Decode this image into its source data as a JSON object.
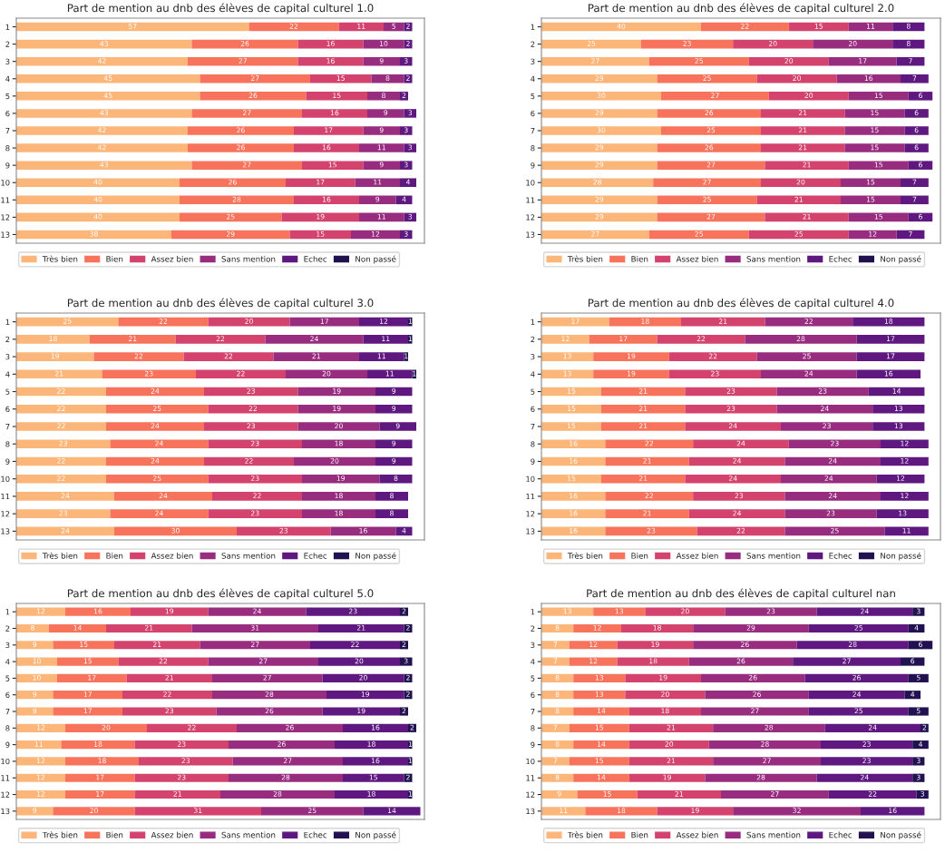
{
  "chart_data": [
    {
      "type": "bar",
      "orientation": "horizontal",
      "stacked": true,
      "data_labels": true,
      "tick_labels": "y",
      "legend": "bottom",
      "xlim": [
        0,
        100
      ],
      "title": "Part de mention au dnb des élèves de capital culturel 1.0",
      "categories": [
        "1",
        "2",
        "3",
        "4",
        "5",
        "6",
        "7",
        "8",
        "9",
        "10",
        "11",
        "12",
        "13"
      ],
      "series": [
        {
          "name": "Très bien",
          "color": "#fdb67a",
          "values": [
            57,
            43,
            42,
            45,
            45,
            43,
            42,
            42,
            43,
            40,
            40,
            40,
            38
          ]
        },
        {
          "name": "Bien",
          "color": "#f7735c",
          "values": [
            22,
            26,
            27,
            27,
            26,
            27,
            26,
            26,
            27,
            26,
            28,
            25,
            29
          ]
        },
        {
          "name": "Assez bien",
          "color": "#d3436e",
          "values": [
            11,
            16,
            16,
            15,
            15,
            16,
            17,
            16,
            15,
            17,
            16,
            19,
            15
          ]
        },
        {
          "name": "Sans mention",
          "color": "#982d80",
          "values": [
            5,
            10,
            9,
            8,
            8,
            9,
            9,
            11,
            9,
            11,
            9,
            11,
            12
          ]
        },
        {
          "name": "Echec",
          "color": "#5f187f",
          "values": [
            2,
            2,
            3,
            2,
            2,
            3,
            3,
            3,
            3,
            4,
            4,
            3,
            3
          ]
        },
        {
          "name": "Non passé",
          "color": "#221150",
          "values": [
            0,
            0,
            0,
            0,
            0,
            0,
            0,
            0,
            0,
            0,
            0,
            0,
            0
          ],
          "value_labels": [
            null,
            null,
            null,
            null,
            null,
            null,
            null,
            null,
            null,
            null,
            null,
            null,
            null
          ]
        }
      ]
    },
    {
      "type": "bar",
      "orientation": "horizontal",
      "stacked": true,
      "data_labels": true,
      "tick_labels": "y",
      "legend": "bottom",
      "xlim": [
        0,
        100
      ],
      "title": "Part de mention au dnb des élèves de capital culturel 2.0",
      "categories": [
        "1",
        "2",
        "3",
        "4",
        "5",
        "6",
        "7",
        "8",
        "9",
        "10",
        "11",
        "12",
        "13"
      ],
      "series": [
        {
          "name": "Très bien",
          "color": "#fdb67a",
          "values": [
            40,
            25,
            27,
            29,
            30,
            29,
            30,
            29,
            29,
            28,
            29,
            29,
            27
          ]
        },
        {
          "name": "Bien",
          "color": "#f7735c",
          "values": [
            22,
            23,
            25,
            25,
            27,
            26,
            25,
            26,
            27,
            27,
            25,
            27,
            25
          ]
        },
        {
          "name": "Assez bien",
          "color": "#d3436e",
          "values": [
            15,
            20,
            20,
            20,
            20,
            21,
            21,
            21,
            21,
            20,
            21,
            21,
            25
          ]
        },
        {
          "name": "Sans mention",
          "color": "#982d80",
          "values": [
            11,
            20,
            17,
            16,
            15,
            15,
            15,
            15,
            15,
            15,
            15,
            15,
            12
          ]
        },
        {
          "name": "Echec",
          "color": "#5f187f",
          "values": [
            8,
            8,
            7,
            7,
            6,
            6,
            6,
            6,
            6,
            7,
            7,
            6,
            7
          ]
        },
        {
          "name": "Non passé",
          "color": "#221150",
          "values": [
            null,
            null,
            null,
            null,
            null,
            null,
            null,
            null,
            null,
            null,
            null,
            null,
            null
          ]
        }
      ]
    },
    {
      "type": "bar",
      "orientation": "horizontal",
      "stacked": true,
      "data_labels": true,
      "tick_labels": "y",
      "legend": "bottom",
      "xlim": [
        0,
        100
      ],
      "title": "Part de mention au dnb des élèves de capital culturel 3.0",
      "categories": [
        "1",
        "2",
        "3",
        "4",
        "5",
        "6",
        "7",
        "8",
        "9",
        "10",
        "11",
        "12",
        "13"
      ],
      "series": [
        {
          "name": "Très bien",
          "color": "#fdb67a",
          "values": [
            25,
            18,
            19,
            21,
            22,
            22,
            22,
            23,
            22,
            22,
            24,
            23,
            24
          ]
        },
        {
          "name": "Bien",
          "color": "#f7735c",
          "values": [
            22,
            21,
            22,
            23,
            24,
            25,
            24,
            24,
            24,
            25,
            24,
            24,
            30
          ]
        },
        {
          "name": "Assez bien",
          "color": "#d3436e",
          "values": [
            20,
            22,
            22,
            22,
            23,
            22,
            23,
            23,
            22,
            23,
            22,
            23,
            23
          ]
        },
        {
          "name": "Sans mention",
          "color": "#982d80",
          "values": [
            17,
            24,
            21,
            20,
            19,
            19,
            20,
            18,
            20,
            19,
            18,
            18,
            16
          ]
        },
        {
          "name": "Echec",
          "color": "#5f187f",
          "values": [
            12,
            11,
            11,
            11,
            9,
            9,
            9,
            9,
            9,
            8,
            8,
            8,
            4
          ]
        },
        {
          "name": "Non passé",
          "color": "#221150",
          "values": [
            1,
            1,
            1,
            1,
            0,
            0,
            0,
            0,
            0,
            0,
            0,
            0,
            0
          ],
          "value_labels": [
            "1",
            "1",
            "1",
            "1",
            null,
            null,
            null,
            null,
            null,
            null,
            null,
            null,
            null
          ]
        }
      ]
    },
    {
      "type": "bar",
      "orientation": "horizontal",
      "stacked": true,
      "data_labels": true,
      "tick_labels": "y",
      "legend": "bottom",
      "xlim": [
        0,
        100
      ],
      "title": "Part de mention au dnb des élèves de capital culturel 4.0",
      "categories": [
        "1",
        "2",
        "3",
        "4",
        "5",
        "6",
        "7",
        "8",
        "9",
        "10",
        "11",
        "12",
        "13"
      ],
      "series": [
        {
          "name": "Très bien",
          "color": "#fdb67a",
          "values": [
            17,
            12,
            13,
            13,
            15,
            15,
            15,
            16,
            16,
            15,
            16,
            16,
            16
          ]
        },
        {
          "name": "Bien",
          "color": "#f7735c",
          "values": [
            18,
            17,
            19,
            19,
            21,
            21,
            21,
            22,
            21,
            21,
            22,
            21,
            23
          ]
        },
        {
          "name": "Assez bien",
          "color": "#d3436e",
          "values": [
            21,
            22,
            22,
            23,
            23,
            23,
            24,
            24,
            24,
            24,
            23,
            24,
            22
          ]
        },
        {
          "name": "Sans mention",
          "color": "#982d80",
          "values": [
            22,
            28,
            25,
            24,
            23,
            24,
            23,
            23,
            24,
            24,
            24,
            23,
            25
          ]
        },
        {
          "name": "Echec",
          "color": "#5f187f",
          "values": [
            18,
            17,
            17,
            16,
            14,
            13,
            13,
            12,
            12,
            12,
            12,
            13,
            11
          ]
        },
        {
          "name": "Non passé",
          "color": "#221150",
          "values": [
            null,
            null,
            null,
            null,
            null,
            null,
            null,
            null,
            null,
            null,
            null,
            null,
            null
          ]
        }
      ]
    },
    {
      "type": "bar",
      "orientation": "horizontal",
      "stacked": true,
      "data_labels": true,
      "tick_labels": "y",
      "legend": "bottom",
      "xlim": [
        0,
        100
      ],
      "title": "Part de mention au dnb des élèves de capital culturel 5.0",
      "categories": [
        "1",
        "2",
        "3",
        "4",
        "5",
        "6",
        "7",
        "8",
        "9",
        "10",
        "11",
        "12",
        "13"
      ],
      "series": [
        {
          "name": "Très bien",
          "color": "#fdb67a",
          "values": [
            12,
            8,
            9,
            10,
            10,
            9,
            9,
            12,
            11,
            12,
            12,
            12,
            9
          ]
        },
        {
          "name": "Bien",
          "color": "#f7735c",
          "values": [
            16,
            14,
            15,
            15,
            17,
            17,
            17,
            20,
            18,
            18,
            17,
            17,
            20
          ]
        },
        {
          "name": "Assez bien",
          "color": "#d3436e",
          "values": [
            19,
            21,
            21,
            22,
            21,
            22,
            23,
            22,
            23,
            23,
            23,
            21,
            31
          ]
        },
        {
          "name": "Sans mention",
          "color": "#982d80",
          "values": [
            24,
            31,
            27,
            27,
            27,
            28,
            26,
            26,
            26,
            27,
            28,
            28,
            25
          ]
        },
        {
          "name": "Echec",
          "color": "#5f187f",
          "values": [
            23,
            21,
            22,
            20,
            20,
            19,
            19,
            16,
            18,
            16,
            15,
            18,
            14
          ]
        },
        {
          "name": "Non passé",
          "color": "#221150",
          "values": [
            2,
            2,
            2,
            3,
            2,
            2,
            2,
            2,
            1,
            1,
            2,
            1,
            0
          ],
          "value_labels": [
            "2",
            "2",
            "2",
            "3",
            "2",
            "2",
            "2",
            "2",
            "1",
            "1",
            "2",
            "1",
            null
          ]
        }
      ]
    },
    {
      "type": "bar",
      "orientation": "horizontal",
      "stacked": true,
      "data_labels": true,
      "tick_labels": "y",
      "legend": "bottom",
      "xlim": [
        0,
        100
      ],
      "title": "Part de mention au dnb des élèves de capital culturel nan",
      "categories": [
        "1",
        "2",
        "3",
        "4",
        "5",
        "6",
        "7",
        "8",
        "9",
        "10",
        "11",
        "12",
        "13"
      ],
      "series": [
        {
          "name": "Très bien",
          "color": "#fdb67a",
          "values": [
            13,
            8,
            7,
            7,
            8,
            8,
            8,
            7,
            8,
            7,
            8,
            9,
            11
          ]
        },
        {
          "name": "Bien",
          "color": "#f7735c",
          "values": [
            13,
            12,
            12,
            12,
            13,
            13,
            14,
            15,
            14,
            15,
            14,
            15,
            18
          ]
        },
        {
          "name": "Assez bien",
          "color": "#d3436e",
          "values": [
            20,
            18,
            19,
            18,
            19,
            20,
            18,
            21,
            20,
            21,
            19,
            21,
            19
          ]
        },
        {
          "name": "Sans mention",
          "color": "#982d80",
          "values": [
            23,
            29,
            26,
            26,
            26,
            26,
            27,
            28,
            28,
            27,
            28,
            27,
            32
          ]
        },
        {
          "name": "Echec",
          "color": "#5f187f",
          "values": [
            24,
            25,
            28,
            27,
            26,
            24,
            25,
            24,
            23,
            23,
            24,
            22,
            16
          ]
        },
        {
          "name": "Non passé",
          "color": "#221150",
          "values": [
            3,
            4,
            6,
            6,
            5,
            4,
            5,
            2,
            4,
            3,
            3,
            3,
            null
          ]
        }
      ]
    }
  ]
}
